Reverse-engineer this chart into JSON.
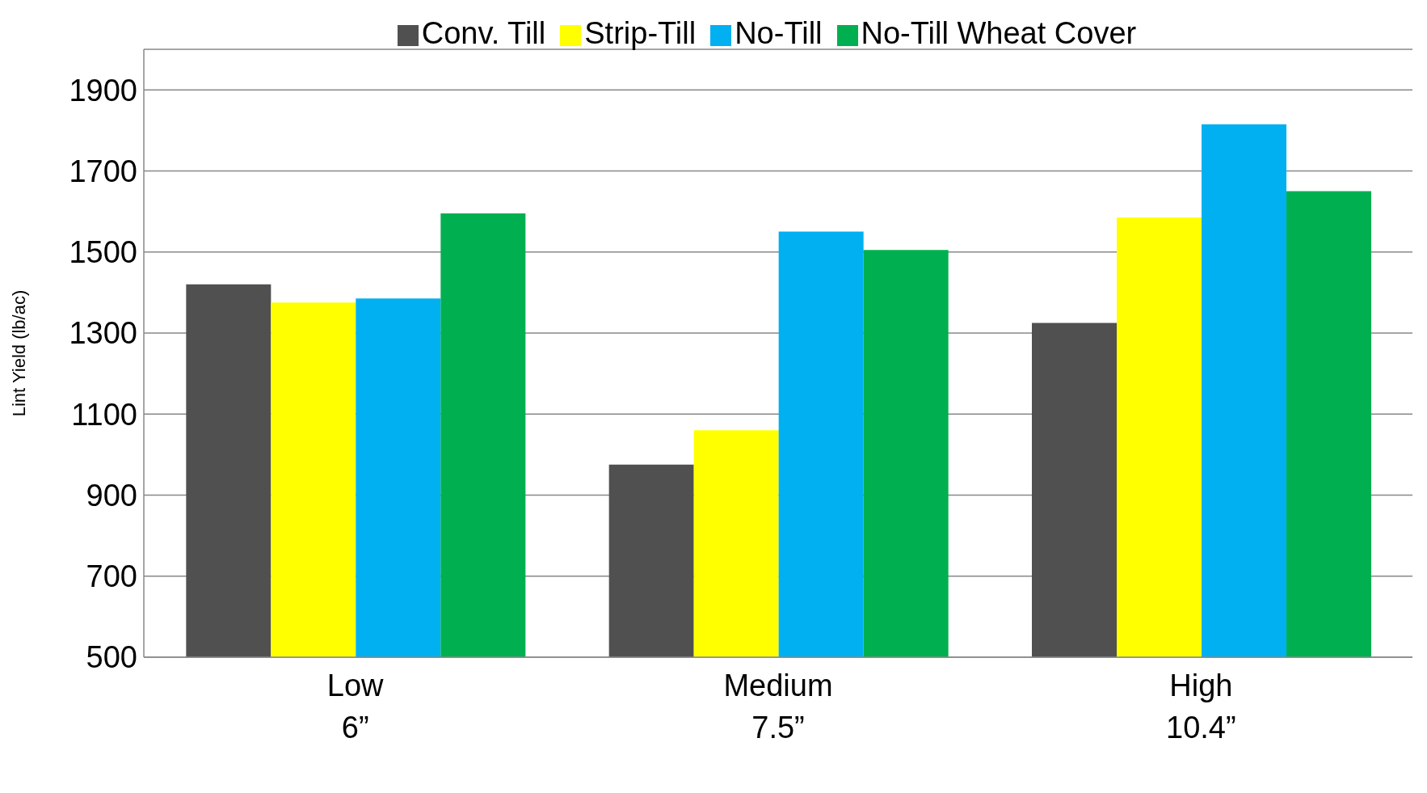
{
  "chart_data": {
    "type": "bar",
    "ylabel": "Lint Yield (lb/ac)",
    "categories": [
      "Low\n6”",
      "Medium\n7.5”",
      "High\n10.4”"
    ],
    "series": [
      {
        "name": "Conv. Till",
        "color": "#505050",
        "values": [
          1420,
          975,
          1325
        ]
      },
      {
        "name": "Strip-Till",
        "color": "#ffff00",
        "values": [
          1375,
          1060,
          1585
        ]
      },
      {
        "name": "No-Till",
        "color": "#00b0f0",
        "values": [
          1385,
          1550,
          1815
        ]
      },
      {
        "name": "No-Till Wheat Cover",
        "color": "#00b050",
        "values": [
          1595,
          1505,
          1650
        ]
      }
    ],
    "ylim": [
      500,
      2000
    ],
    "yticks": [
      500,
      700,
      900,
      1100,
      1300,
      1500,
      1700,
      1900
    ],
    "grid": "y",
    "legend": "top"
  }
}
